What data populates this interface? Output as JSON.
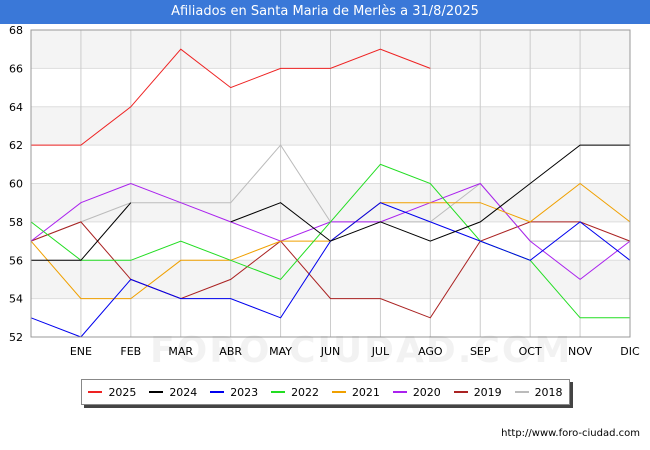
{
  "header": {
    "title": "Afiliados en Santa Maria de Merlès a 31/8/2025"
  },
  "watermark": "FORO-CIUDAD.COM",
  "source": "http://www.foro-ciudad.com",
  "chart_data": {
    "type": "line",
    "title": "Afiliados en Santa Maria de Merlès a 31/8/2025",
    "categories": [
      "",
      "ENE",
      "FEB",
      "MAR",
      "ABR",
      "MAY",
      "JUN",
      "JUL",
      "AGO",
      "SEP",
      "OCT",
      "NOV",
      "DIC"
    ],
    "y_ticks": [
      52,
      54,
      56,
      58,
      60,
      62,
      64,
      66,
      68
    ],
    "ylim": [
      52,
      68
    ],
    "grid": true,
    "legend_position": "bottom",
    "series": [
      {
        "name": "2025",
        "color": "#ee2222",
        "values": [
          62,
          62,
          64,
          67,
          65,
          66,
          66,
          67,
          66,
          null,
          null,
          null,
          null
        ]
      },
      {
        "name": "2024",
        "color": "#000000",
        "values": [
          56,
          56,
          59,
          null,
          58,
          59,
          57,
          58,
          57,
          58,
          60,
          62,
          62
        ]
      },
      {
        "name": "2023",
        "color": "#0000ee",
        "values": [
          53,
          52,
          55,
          54,
          54,
          53,
          57,
          59,
          58,
          57,
          56,
          58,
          56
        ]
      },
      {
        "name": "2022",
        "color": "#22dd22",
        "values": [
          58,
          56,
          56,
          57,
          56,
          55,
          58,
          61,
          60,
          57,
          56,
          53,
          53
        ]
      },
      {
        "name": "2021",
        "color": "#f0a000",
        "values": [
          57,
          54,
          54,
          56,
          56,
          57,
          57,
          59,
          59,
          59,
          58,
          60,
          58
        ]
      },
      {
        "name": "2020",
        "color": "#aa22ee",
        "values": [
          57,
          59,
          60,
          59,
          58,
          57,
          58,
          58,
          59,
          60,
          57,
          55,
          57
        ]
      },
      {
        "name": "2019",
        "color": "#aa2222",
        "values": [
          57,
          58,
          55,
          54,
          55,
          57,
          54,
          54,
          53,
          57,
          58,
          58,
          57
        ]
      },
      {
        "name": "2018",
        "color": "#bbbbbb",
        "values": [
          57,
          58,
          59,
          59,
          59,
          62,
          58,
          58,
          58,
          60,
          57,
          57,
          57
        ]
      }
    ]
  }
}
